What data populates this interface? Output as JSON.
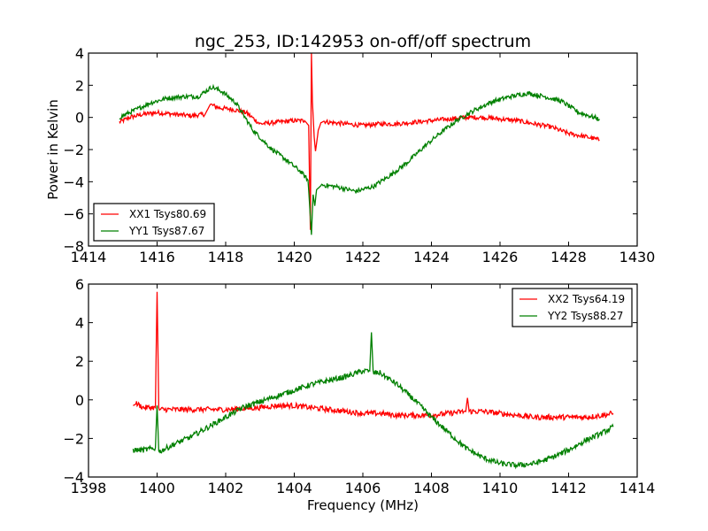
{
  "chart_data": [
    {
      "type": "line",
      "title": "ngc_253, ID:142953 on-off/off spectrum",
      "xlabel": "",
      "ylabel": "Power in Kelvin",
      "xlim": [
        1414,
        1430
      ],
      "ylim": [
        -8,
        4
      ],
      "xticks": [
        1414,
        1416,
        1418,
        1420,
        1422,
        1424,
        1426,
        1428,
        1430
      ],
      "yticks": [
        -8,
        -6,
        -4,
        -2,
        0,
        2,
        4
      ],
      "xtick_labels": [
        "1414",
        "1416",
        "1418",
        "1420",
        "1422",
        "1424",
        "1426",
        "1428",
        "1430"
      ],
      "ytick_labels": [
        "−8",
        "−6",
        "−4",
        "−2",
        "0",
        "2",
        "4"
      ],
      "grid": false,
      "legend_position": "lower-left",
      "series": [
        {
          "name": "XX1 Tsys80.69",
          "color": "#ff0000",
          "x": [
            1414.9,
            1415.2,
            1415.6,
            1416.0,
            1416.5,
            1417.0,
            1417.4,
            1417.55,
            1417.8,
            1418.2,
            1418.6,
            1419.0,
            1419.5,
            1420.0,
            1420.3,
            1420.42,
            1420.47,
            1420.5,
            1420.53,
            1420.58,
            1420.62,
            1420.7,
            1420.8,
            1421.0,
            1421.5,
            1422.0,
            1422.5,
            1423.0,
            1423.5,
            1424.0,
            1424.5,
            1425.0,
            1425.5,
            1426.0,
            1426.5,
            1427.0,
            1427.5,
            1428.0,
            1428.5,
            1428.9
          ],
          "y": [
            -0.3,
            0.0,
            0.2,
            0.3,
            0.2,
            0.1,
            0.2,
            0.8,
            0.6,
            0.5,
            0.3,
            -0.4,
            -0.3,
            -0.2,
            -0.2,
            -0.5,
            -7.0,
            4.0,
            1.0,
            -1.2,
            -2.1,
            -0.8,
            -0.2,
            -0.3,
            -0.4,
            -0.5,
            -0.4,
            -0.4,
            -0.3,
            -0.2,
            -0.1,
            0.0,
            0.0,
            -0.1,
            -0.2,
            -0.4,
            -0.6,
            -1.0,
            -1.2,
            -1.4
          ]
        },
        {
          "name": "YY1 Tsys87.67",
          "color": "#008000",
          "x": [
            1414.9,
            1415.3,
            1415.8,
            1416.3,
            1416.8,
            1417.2,
            1417.6,
            1417.9,
            1418.3,
            1418.8,
            1419.3,
            1419.8,
            1420.2,
            1420.4,
            1420.45,
            1420.5,
            1420.55,
            1420.6,
            1420.65,
            1420.8,
            1421.2,
            1421.8,
            1422.3,
            1422.8,
            1423.3,
            1423.8,
            1424.3,
            1424.8,
            1425.3,
            1425.8,
            1426.3,
            1426.8,
            1427.3,
            1427.8,
            1428.3,
            1428.9
          ],
          "y": [
            0.0,
            0.4,
            0.9,
            1.2,
            1.3,
            1.3,
            1.9,
            1.6,
            0.9,
            -0.8,
            -1.9,
            -2.7,
            -3.4,
            -3.9,
            -5.5,
            -7.3,
            -4.8,
            -5.5,
            -4.5,
            -4.2,
            -4.3,
            -4.6,
            -4.3,
            -3.6,
            -2.8,
            -1.8,
            -0.9,
            -0.1,
            0.5,
            1.0,
            1.3,
            1.5,
            1.3,
            1.0,
            0.3,
            -0.1
          ]
        }
      ]
    },
    {
      "type": "line",
      "title": "",
      "xlabel": "Frequency (MHz)",
      "ylabel": "",
      "xlim": [
        1398,
        1414
      ],
      "ylim": [
        -4,
        6
      ],
      "xticks": [
        1398,
        1400,
        1402,
        1404,
        1406,
        1408,
        1410,
        1412,
        1414
      ],
      "yticks": [
        -4,
        -2,
        0,
        2,
        4,
        6
      ],
      "xtick_labels": [
        "1398",
        "1400",
        "1402",
        "1404",
        "1406",
        "1408",
        "1410",
        "1412",
        "1414"
      ],
      "ytick_labels": [
        "−4",
        "−2",
        "0",
        "2",
        "4",
        "6"
      ],
      "grid": false,
      "legend_position": "upper-right",
      "series": [
        {
          "name": "XX2 Tsys64.19",
          "color": "#ff0000",
          "x": [
            1399.3,
            1399.4,
            1399.6,
            1399.95,
            1400.0,
            1400.05,
            1400.5,
            1401.0,
            1402.0,
            1403.0,
            1403.5,
            1404.0,
            1404.5,
            1405.0,
            1406.0,
            1406.5,
            1407.0,
            1407.5,
            1408.0,
            1408.5,
            1409.0,
            1409.05,
            1409.1,
            1409.5,
            1410.0,
            1410.5,
            1411.0,
            1411.5,
            1412.0,
            1412.5,
            1413.0,
            1413.3
          ],
          "y": [
            -0.3,
            -0.2,
            -0.4,
            -0.4,
            5.6,
            -0.5,
            -0.5,
            -0.5,
            -0.5,
            -0.4,
            -0.3,
            -0.3,
            -0.4,
            -0.5,
            -0.7,
            -0.7,
            -0.8,
            -0.8,
            -0.8,
            -0.7,
            -0.6,
            0.1,
            -0.6,
            -0.6,
            -0.7,
            -0.8,
            -0.9,
            -0.9,
            -0.9,
            -0.9,
            -0.8,
            -0.7
          ]
        },
        {
          "name": "YY2 Tsys88.27",
          "color": "#008000",
          "x": [
            1399.3,
            1399.6,
            1399.95,
            1400.0,
            1400.05,
            1400.5,
            1401.0,
            1401.5,
            1402.0,
            1402.5,
            1403.0,
            1403.5,
            1404.0,
            1404.5,
            1405.0,
            1405.5,
            1406.0,
            1406.2,
            1406.25,
            1406.3,
            1406.5,
            1407.0,
            1407.5,
            1408.0,
            1408.5,
            1409.0,
            1409.5,
            1410.0,
            1410.5,
            1411.0,
            1411.5,
            1412.0,
            1412.5,
            1413.0,
            1413.3
          ],
          "y": [
            -2.6,
            -2.6,
            -2.5,
            -0.3,
            -2.7,
            -2.3,
            -1.9,
            -1.4,
            -0.9,
            -0.4,
            -0.1,
            0.2,
            0.5,
            0.8,
            1.0,
            1.2,
            1.5,
            1.5,
            3.5,
            1.4,
            1.4,
            0.8,
            0.0,
            -0.9,
            -1.7,
            -2.5,
            -3.0,
            -3.3,
            -3.4,
            -3.3,
            -3.0,
            -2.6,
            -2.1,
            -1.7,
            -1.4
          ]
        }
      ]
    }
  ]
}
